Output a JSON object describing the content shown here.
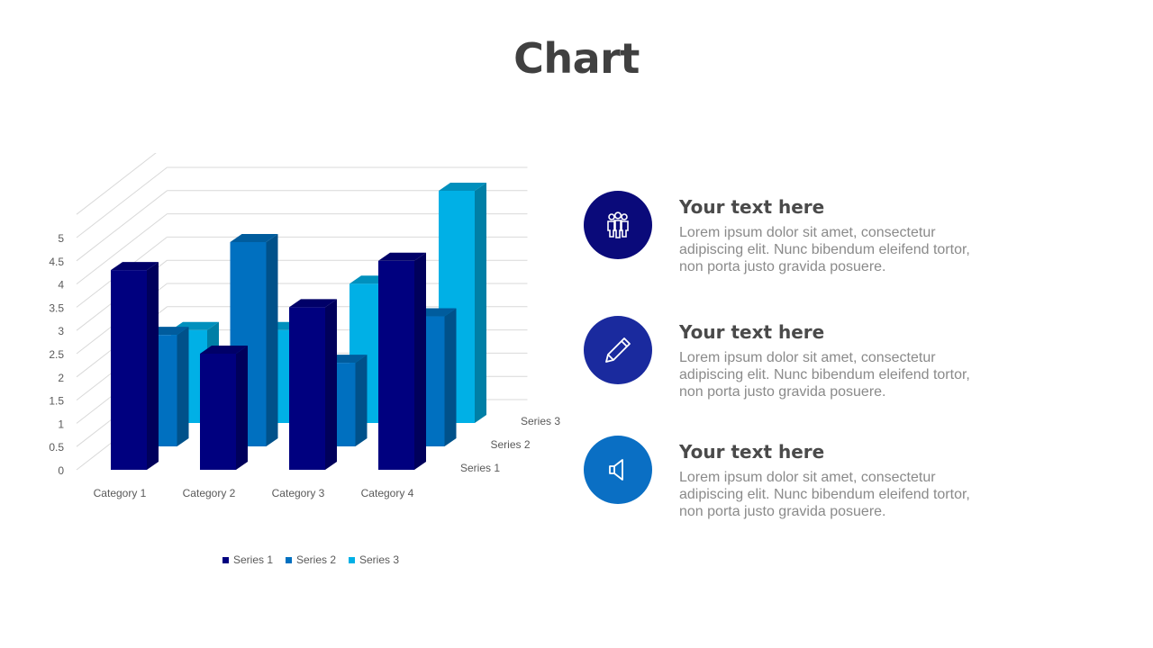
{
  "slide": {
    "title": "Chart"
  },
  "chart_data": {
    "type": "bar",
    "categories": [
      "Category 1",
      "Category 2",
      "Category 3",
      "Category 4"
    ],
    "series": [
      {
        "name": "Series 1",
        "color": "#00007f",
        "values": [
          4.3,
          2.5,
          3.5,
          4.5
        ]
      },
      {
        "name": "Series 2",
        "color": "#0070c0",
        "values": [
          2.4,
          4.4,
          1.8,
          2.8
        ]
      },
      {
        "name": "Series 3",
        "color": "#00b0e6",
        "values": [
          2.0,
          2.0,
          3.0,
          5.0
        ]
      }
    ],
    "y_ticks": [
      "0",
      "0.5",
      "1",
      "1.5",
      "2",
      "2.5",
      "3",
      "3.5",
      "4",
      "4.5",
      "5"
    ],
    "ylim": [
      0,
      5
    ],
    "grid": true,
    "legend": "bottom",
    "three_d": true
  },
  "items": [
    {
      "heading": "Your text here",
      "body": "Lorem ipsum dolor sit amet, consectetur adipiscing elit. Nunc bibendum eleifend tortor, non porta justo gravida posuere.",
      "icon": "people-icon",
      "color": "#0a0a7a"
    },
    {
      "heading": "Your text here",
      "body": "Lorem ipsum dolor sit amet, consectetur adipiscing elit. Nunc bibendum eleifend tortor, non porta justo gravida posuere.",
      "icon": "pencil-icon",
      "color": "#1a2a9e"
    },
    {
      "heading": "Your text here",
      "body": "Lorem ipsum dolor sit amet, consectetur adipiscing elit. Nunc bibendum eleifend tortor, non porta justo gravida posuere.",
      "icon": "speaker-icon",
      "color": "#0a6fc4"
    }
  ]
}
